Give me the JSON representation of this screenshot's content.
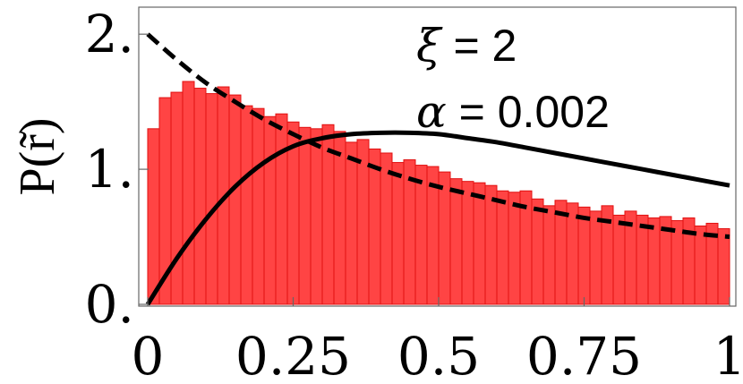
{
  "chart_data": {
    "type": "bar",
    "ylabel": "P(r̃)",
    "xlim": [
      0,
      1
    ],
    "ylim": [
      0,
      2.2
    ],
    "x_ticks": [
      {
        "value": 0,
        "label": "0"
      },
      {
        "value": 0.25,
        "label": "0.25"
      },
      {
        "value": 0.5,
        "label": "0.5"
      },
      {
        "value": 0.75,
        "label": "0.75"
      },
      {
        "value": 1,
        "label": "1"
      }
    ],
    "y_ticks": [
      {
        "value": 0,
        "label": "0."
      },
      {
        "value": 1,
        "label": "1."
      },
      {
        "value": 2,
        "label": "2."
      }
    ],
    "annotations": {
      "xi_symbol": "ξ",
      "xi_rest": " = 2",
      "alpha_symbol": "α",
      "alpha_rest": " = 0.002"
    },
    "histogram": {
      "bin_width": 0.02,
      "color": "#ff4444",
      "edge_color": "#e01010",
      "values": [
        1.3,
        1.53,
        1.57,
        1.65,
        1.6,
        1.56,
        1.61,
        1.55,
        1.47,
        1.45,
        1.39,
        1.41,
        1.35,
        1.31,
        1.3,
        1.33,
        1.28,
        1.2,
        1.22,
        1.15,
        1.12,
        1.05,
        1.07,
        1.03,
        1.02,
        0.98,
        0.93,
        0.91,
        0.9,
        0.88,
        0.84,
        0.83,
        0.84,
        0.78,
        0.73,
        0.77,
        0.75,
        0.72,
        0.69,
        0.73,
        0.66,
        0.69,
        0.66,
        0.64,
        0.65,
        0.62,
        0.64,
        0.58,
        0.6,
        0.56
      ]
    },
    "series": [
      {
        "style": "dashed",
        "color": "#000000",
        "x": [
          0,
          0.05,
          0.1,
          0.15,
          0.2,
          0.25,
          0.3,
          0.35,
          0.4,
          0.45,
          0.5,
          0.55,
          0.6,
          0.65,
          0.7,
          0.75,
          0.8,
          0.85,
          0.9,
          0.95,
          1.0
        ],
        "y": [
          2.0,
          1.81,
          1.64,
          1.5,
          1.37,
          1.26,
          1.16,
          1.08,
          1.0,
          0.93,
          0.87,
          0.82,
          0.77,
          0.72,
          0.68,
          0.64,
          0.61,
          0.58,
          0.55,
          0.52,
          0.5
        ]
      },
      {
        "style": "solid",
        "color": "#000000",
        "x": [
          0,
          0.05,
          0.1,
          0.15,
          0.2,
          0.25,
          0.3,
          0.35,
          0.4,
          0.45,
          0.5,
          0.55,
          0.6,
          0.65,
          0.7,
          0.75,
          0.8,
          0.85,
          0.9,
          0.95,
          1.0
        ],
        "y": [
          0,
          0.34,
          0.63,
          0.87,
          1.05,
          1.17,
          1.23,
          1.26,
          1.27,
          1.27,
          1.26,
          1.23,
          1.2,
          1.16,
          1.12,
          1.08,
          1.04,
          1.0,
          0.96,
          0.92,
          0.88
        ]
      }
    ]
  }
}
